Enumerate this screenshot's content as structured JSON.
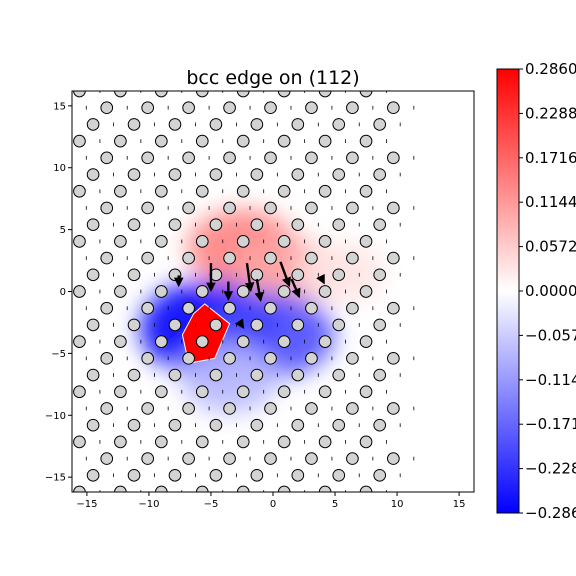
{
  "chart_data": {
    "type": "heatmap",
    "title": "bcc edge on (112)",
    "xlabel": "",
    "ylabel": "",
    "xlim": [
      -16.2,
      16.2
    ],
    "ylim": [
      -16.2,
      16.2
    ],
    "xticks": [
      -15,
      -10,
      -5,
      0,
      5,
      10,
      15
    ],
    "yticks": [
      -15,
      -10,
      -5,
      0,
      5,
      10,
      15
    ],
    "colormap": "bwr",
    "colors": {
      "negative": "#0000ff",
      "zero": "#ffffff",
      "positive": "#ff0000",
      "atom_fill": "#d3d3d3",
      "atom_edge": "#000000"
    },
    "colorbar": {
      "vmin": -0.286,
      "vmax": 0.286,
      "tick_labels": [
        "0.2860",
        "0.2288",
        "0.1716",
        "0.1144",
        "0.0572",
        "0.0000",
        "−0.0572",
        "−0.1144",
        "−0.1716",
        "−0.2288",
        "−0.2860"
      ]
    },
    "lattice": {
      "row_spacing": 1.35,
      "column_spacing": 3.3,
      "row_shift": 1.1
    },
    "strain_field": {
      "positive_lobes": [
        {
          "x": -2.5,
          "y": 3.5,
          "peak": 0.14
        },
        {
          "x": 1.0,
          "y": 1.5,
          "peak": 0.1
        },
        {
          "x": 5.5,
          "y": 1.5,
          "peak": 0.03
        }
      ],
      "negative_lobes": [
        {
          "x": -5.0,
          "y": -3.0,
          "peak": -0.286
        },
        {
          "x": 0.0,
          "y": -3.5,
          "peak": -0.2
        },
        {
          "x": -3.5,
          "y": -7.0,
          "peak": -0.08
        }
      ],
      "saturated_core_polygon": [
        [
          -5.5,
          -1.0
        ],
        [
          -3.5,
          -2.6
        ],
        [
          -4.7,
          -5.4
        ],
        [
          -6.8,
          -5.8
        ],
        [
          -7.3,
          -3.5
        ],
        [
          -6.4,
          -1.8
        ]
      ]
    },
    "displacement_arrows": [
      {
        "x": -5.0,
        "y": 2.3,
        "dx": 0.0,
        "dy": -2.2
      },
      {
        "x": -3.6,
        "y": 0.8,
        "dx": 0.0,
        "dy": -1.4
      },
      {
        "x": -2.1,
        "y": 2.3,
        "dx": 0.3,
        "dy": -2.2
      },
      {
        "x": -1.3,
        "y": 1.0,
        "dx": 0.3,
        "dy": -1.7
      },
      {
        "x": 0.6,
        "y": 2.4,
        "dx": 0.7,
        "dy": -1.9
      },
      {
        "x": 1.5,
        "y": 1.0,
        "dx": 0.6,
        "dy": -1.4
      },
      {
        "x": -7.6,
        "y": 1.3,
        "dx": 0.0,
        "dy": -0.8
      },
      {
        "x": -2.6,
        "y": -2.6,
        "dx": 0.2,
        "dy": -0.3
      },
      {
        "x": 4.0,
        "y": 0.9,
        "dx": 0.1,
        "dy": -0.2
      }
    ]
  }
}
